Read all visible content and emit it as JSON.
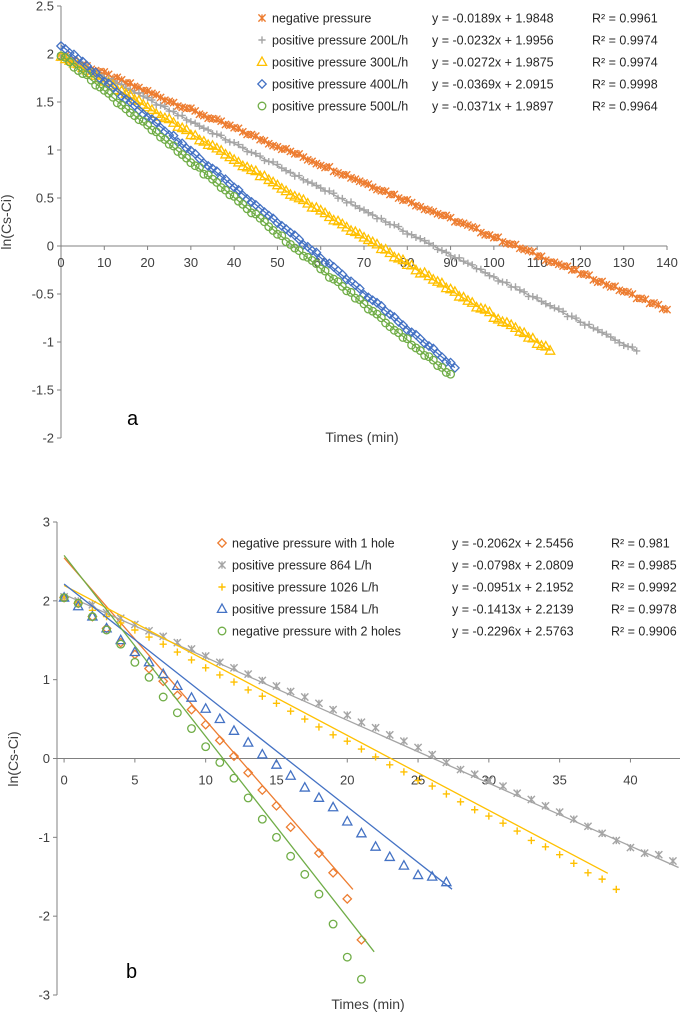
{
  "chart_data": [
    {
      "type": "scatter",
      "panel_label": "a",
      "xlabel": "Times (min)",
      "ylabel": "ln(Cs-Ci)",
      "xlim": [
        0,
        140
      ],
      "ylim": [
        -2,
        2.5
      ],
      "xticks": [
        0,
        10,
        20,
        30,
        40,
        50,
        60,
        70,
        80,
        90,
        100,
        110,
        120,
        130,
        140
      ],
      "yticks": [
        2.5,
        2,
        1.5,
        1,
        0.5,
        0,
        -0.5,
        -1,
        -1.5,
        -2
      ],
      "legend_position": "top-right",
      "series": [
        {
          "name": "negative pressure",
          "marker": "star",
          "color": "#ED7D31",
          "slope": -0.0189,
          "intercept": 1.9848,
          "x_start": 0,
          "x_end": 140,
          "step": 1,
          "equation": "y = -0.0189x + 1.9848",
          "r2": "R² = 0.9961"
        },
        {
          "name": "positive pressure 200L/h",
          "marker": "plus",
          "color": "#A5A5A5",
          "slope": -0.0232,
          "intercept": 1.9956,
          "x_start": 0,
          "x_end": 133,
          "step": 1,
          "equation": "y = -0.0232x + 1.9956",
          "r2": "R² = 0.9974"
        },
        {
          "name": "positive pressure 300L/h",
          "marker": "triangle",
          "color": "#FFC000",
          "slope": -0.0272,
          "intercept": 1.9875,
          "x_start": 0,
          "x_end": 113,
          "step": 1,
          "equation": "y = -0.0272x + 1.9875",
          "r2": "R² = 0.9974"
        },
        {
          "name": "positive pressure 400L/h",
          "marker": "diamond",
          "color": "#4472C4",
          "slope": -0.0369,
          "intercept": 2.0915,
          "x_start": 0,
          "x_end": 91,
          "step": 1,
          "equation": "y = -0.0369x + 2.0915",
          "r2": "R² = 0.9998"
        },
        {
          "name": "positive pressure 500L/h",
          "marker": "circle",
          "color": "#70AD47",
          "slope": -0.0371,
          "intercept": 1.9897,
          "x_start": 0,
          "x_end": 90,
          "step": 1,
          "equation": "y = -0.0371x + 1.9897",
          "r2": "R² = 0.9964"
        }
      ]
    },
    {
      "type": "scatter",
      "panel_label": "b",
      "xlabel": "Times (min)",
      "ylabel": "ln(Cs-Ci)",
      "xlim": [
        -0.5,
        43.5
      ],
      "ylim": [
        -3,
        3
      ],
      "xticks": [
        0,
        5,
        10,
        15,
        20,
        25,
        30,
        35,
        40
      ],
      "yticks": [
        3,
        2,
        1,
        0,
        -1,
        -2,
        -3
      ],
      "legend_position": "top-right",
      "series": [
        {
          "name": "negative pressure with 1 hole",
          "marker": "diamond",
          "color": "#ED7D31",
          "slope": -0.2062,
          "intercept": 2.5456,
          "x_start": 0,
          "x_end": 20,
          "step": 1,
          "equation": "y = -0.2062x + 2.5456",
          "r2": "R² = 0.981",
          "points": [
            [
              0,
              2.04
            ],
            [
              1,
              1.97
            ],
            [
              2,
              1.8
            ],
            [
              3,
              1.65
            ],
            [
              4,
              1.47
            ],
            [
              5,
              1.32
            ],
            [
              6,
              1.14
            ],
            [
              7,
              0.98
            ],
            [
              8,
              0.8
            ],
            [
              9,
              0.62
            ],
            [
              10,
              0.43
            ],
            [
              11,
              0.23
            ],
            [
              12,
              0.03
            ],
            [
              13,
              -0.18
            ],
            [
              14,
              -0.4
            ],
            [
              15,
              -0.6
            ],
            [
              16,
              -0.87
            ],
            [
              18,
              -1.2
            ],
            [
              19,
              -1.45
            ],
            [
              20,
              -1.78
            ],
            [
              21,
              -2.3
            ]
          ]
        },
        {
          "name": "positive pressure 864 L/h",
          "marker": "star",
          "color": "#A5A5A5",
          "slope": -0.0798,
          "intercept": 2.0809,
          "x_start": 0,
          "x_end": 43,
          "step": 1,
          "equation": "y = -0.0798x + 2.0809",
          "r2": "R² = 0.9985",
          "points": [
            [
              0,
              2.05
            ],
            [
              1,
              2.0
            ],
            [
              2,
              1.95
            ],
            [
              3,
              1.85
            ],
            [
              4,
              1.78
            ],
            [
              5,
              1.7
            ],
            [
              6,
              1.62
            ],
            [
              7,
              1.55
            ],
            [
              8,
              1.47
            ],
            [
              9,
              1.39
            ],
            [
              10,
              1.3
            ],
            [
              11,
              1.22
            ],
            [
              12,
              1.15
            ],
            [
              13,
              1.07
            ],
            [
              14,
              0.99
            ],
            [
              15,
              0.92
            ],
            [
              16,
              0.85
            ],
            [
              17,
              0.78
            ],
            [
              18,
              0.7
            ],
            [
              19,
              0.62
            ],
            [
              20,
              0.55
            ],
            [
              21,
              0.46
            ],
            [
              22,
              0.39
            ],
            [
              23,
              0.3
            ],
            [
              24,
              0.22
            ],
            [
              25,
              0.14
            ],
            [
              26,
              0.05
            ],
            [
              27,
              -0.05
            ],
            [
              28,
              -0.14
            ],
            [
              29,
              -0.2
            ],
            [
              30,
              -0.28
            ],
            [
              31,
              -0.35
            ],
            [
              32,
              -0.44
            ],
            [
              33,
              -0.52
            ],
            [
              34,
              -0.6
            ],
            [
              35,
              -0.68
            ],
            [
              36,
              -0.77
            ],
            [
              37,
              -0.86
            ],
            [
              38,
              -0.95
            ],
            [
              39,
              -1.04
            ],
            [
              40,
              -1.13
            ],
            [
              41,
              -1.2
            ],
            [
              42,
              -1.22
            ],
            [
              43,
              -1.3
            ]
          ]
        },
        {
          "name": "positive pressure 1026 L/h",
          "marker": "plus",
          "color": "#FFC000",
          "slope": -0.0951,
          "intercept": 2.1952,
          "x_start": 0,
          "x_end": 38,
          "step": 1,
          "equation": "y = -0.0951x + 2.1952",
          "r2": "R² = 0.9992",
          "points": [
            [
              0,
              2.05
            ],
            [
              1,
              1.98
            ],
            [
              2,
              1.88
            ],
            [
              3,
              1.8
            ],
            [
              4,
              1.72
            ],
            [
              5,
              1.63
            ],
            [
              6,
              1.54
            ],
            [
              7,
              1.45
            ],
            [
              8,
              1.35
            ],
            [
              9,
              1.25
            ],
            [
              10,
              1.15
            ],
            [
              11,
              1.06
            ],
            [
              12,
              0.97
            ],
            [
              13,
              0.87
            ],
            [
              14,
              0.79
            ],
            [
              15,
              0.7
            ],
            [
              16,
              0.6
            ],
            [
              17,
              0.5
            ],
            [
              18,
              0.4
            ],
            [
              19,
              0.3
            ],
            [
              20,
              0.22
            ],
            [
              21,
              0.12
            ],
            [
              22,
              0.02
            ],
            [
              23,
              -0.08
            ],
            [
              24,
              -0.17
            ],
            [
              25,
              -0.28
            ],
            [
              26,
              -0.35
            ],
            [
              27,
              -0.45
            ],
            [
              28,
              -0.55
            ],
            [
              29,
              -0.65
            ],
            [
              30,
              -0.73
            ],
            [
              31,
              -0.82
            ],
            [
              32,
              -0.92
            ],
            [
              33,
              -1.04
            ],
            [
              34,
              -1.12
            ],
            [
              35,
              -1.22
            ],
            [
              36,
              -1.33
            ],
            [
              37,
              -1.45
            ],
            [
              38,
              -1.53
            ],
            [
              39,
              -1.66
            ]
          ]
        },
        {
          "name": "positive pressure 1584 L/h",
          "marker": "triangle",
          "color": "#4472C4",
          "slope": -0.1413,
          "intercept": 2.2139,
          "x_start": 0,
          "x_end": 27,
          "step": 1,
          "equation": "y = -0.1413x + 2.2139",
          "r2": "R² = 0.9978",
          "points": [
            [
              0,
              2.04
            ],
            [
              1,
              1.93
            ],
            [
              2,
              1.8
            ],
            [
              3,
              1.65
            ],
            [
              4,
              1.5
            ],
            [
              5,
              1.35
            ],
            [
              6,
              1.22
            ],
            [
              7,
              1.07
            ],
            [
              8,
              0.92
            ],
            [
              9,
              0.77
            ],
            [
              10,
              0.63
            ],
            [
              11,
              0.5
            ],
            [
              12,
              0.35
            ],
            [
              13,
              0.2
            ],
            [
              14,
              0.05
            ],
            [
              15,
              -0.08
            ],
            [
              16,
              -0.22
            ],
            [
              17,
              -0.37
            ],
            [
              18,
              -0.5
            ],
            [
              19,
              -0.62
            ],
            [
              20,
              -0.8
            ],
            [
              21,
              -0.95
            ],
            [
              22,
              -1.12
            ],
            [
              23,
              -1.25
            ],
            [
              24,
              -1.36
            ],
            [
              25,
              -1.48
            ],
            [
              26,
              -1.5
            ],
            [
              27,
              -1.57
            ]
          ]
        },
        {
          "name": "negative pressure with 2 holes",
          "marker": "circle",
          "color": "#70AD47",
          "slope": -0.2296,
          "intercept": 2.5763,
          "x_start": 0,
          "x_end": 21.5,
          "step": 1,
          "equation": "y = -0.2296x + 2.5763",
          "r2": "R² = 0.9906",
          "points": [
            [
              0,
              2.04
            ],
            [
              1,
              1.97
            ],
            [
              2,
              1.8
            ],
            [
              3,
              1.63
            ],
            [
              4,
              1.45
            ],
            [
              5,
              1.22
            ],
            [
              6,
              1.03
            ],
            [
              7,
              0.78
            ],
            [
              8,
              0.58
            ],
            [
              9,
              0.38
            ],
            [
              10,
              0.15
            ],
            [
              11,
              -0.05
            ],
            [
              12,
              -0.25
            ],
            [
              13,
              -0.5
            ],
            [
              14,
              -0.77
            ],
            [
              15,
              -1.0
            ],
            [
              16,
              -1.24
            ],
            [
              17,
              -1.47
            ],
            [
              18,
              -1.72
            ],
            [
              19,
              -2.1
            ],
            [
              20,
              -2.52
            ],
            [
              21,
              -2.8
            ]
          ]
        }
      ]
    }
  ]
}
